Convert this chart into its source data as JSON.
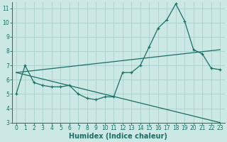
{
  "xlabel": "Humidex (Indice chaleur)",
  "background_color": "#cce8e5",
  "grid_color": "#aacfcc",
  "line_color": "#1a6e65",
  "xlim": [
    -0.5,
    23.5
  ],
  "ylim": [
    3,
    11.4
  ],
  "xticks": [
    0,
    1,
    2,
    3,
    4,
    5,
    6,
    7,
    8,
    9,
    10,
    11,
    12,
    13,
    14,
    15,
    16,
    17,
    18,
    19,
    20,
    21,
    22,
    23
  ],
  "yticks": [
    3,
    4,
    5,
    6,
    7,
    8,
    9,
    10,
    11
  ],
  "line1_x": [
    0,
    1,
    2,
    3,
    4,
    5,
    6,
    7,
    8,
    9,
    10,
    11,
    12,
    13,
    14,
    15,
    16,
    17,
    18,
    19,
    20,
    21,
    22,
    23
  ],
  "line1_y": [
    5.0,
    7.0,
    5.8,
    5.6,
    5.5,
    5.5,
    5.6,
    5.0,
    4.7,
    4.6,
    4.8,
    4.8,
    6.5,
    6.5,
    7.0,
    8.3,
    9.6,
    10.2,
    11.3,
    10.1,
    8.1,
    7.8,
    6.8,
    6.7
  ],
  "line2_x": [
    0,
    23
  ],
  "line2_y": [
    6.5,
    8.1
  ],
  "line3_x": [
    0,
    23
  ],
  "line3_y": [
    6.5,
    3.0
  ],
  "font_size_label": 7,
  "font_size_tick": 5.5
}
